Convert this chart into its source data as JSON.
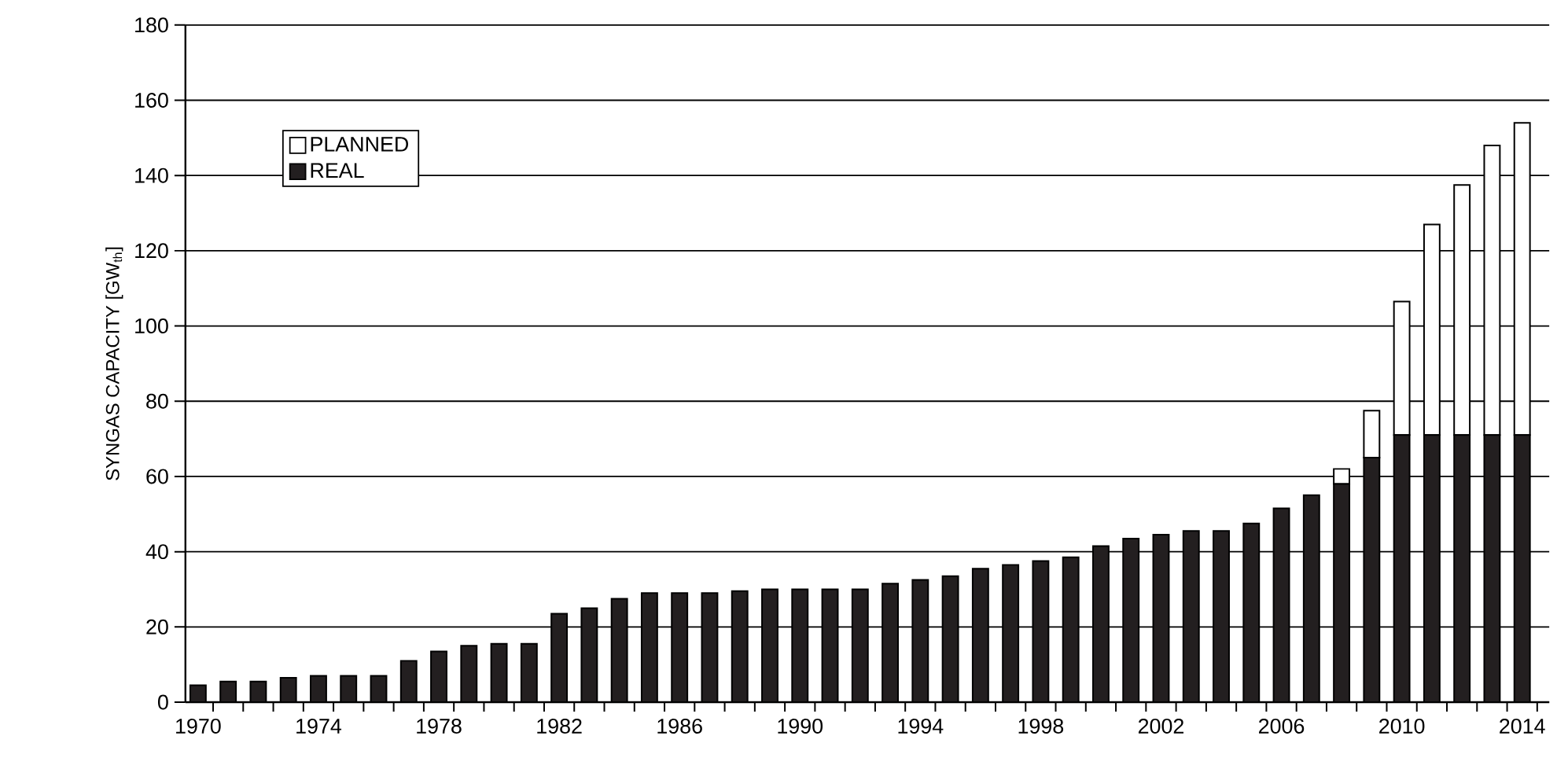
{
  "chart_data": {
    "type": "bar",
    "stacked": true,
    "ylabel": "SYNGAS CAPACITY [GW$_{th}$]",
    "categories": [
      "1970",
      null,
      null,
      null,
      "1974",
      null,
      null,
      null,
      "1978",
      null,
      null,
      null,
      "1982",
      null,
      null,
      null,
      "1986",
      null,
      null,
      null,
      "1990",
      null,
      null,
      null,
      "1994",
      null,
      null,
      null,
      "1998",
      null,
      null,
      null,
      "2002",
      null,
      null,
      null,
      "2006",
      null,
      null,
      null,
      "2010",
      null,
      null,
      null,
      "2014"
    ],
    "series": [
      {
        "name": "REAL",
        "color": "#231f20",
        "values": [
          4.5,
          5.5,
          5.5,
          6.5,
          7,
          7,
          7,
          11,
          13.5,
          15,
          15.5,
          15.5,
          23.5,
          25,
          27.5,
          29,
          29,
          29,
          29.5,
          30,
          30,
          30,
          30,
          31.5,
          32.5,
          33.5,
          35.5,
          36.5,
          37.5,
          38.5,
          41.5,
          43.5,
          44.5,
          45.5,
          45.5,
          47.5,
          51.5,
          55,
          58,
          65,
          71,
          71,
          71,
          71,
          71
        ]
      },
      {
        "name": "PLANNED",
        "color": "#ffffff",
        "values": [
          null,
          null,
          null,
          null,
          null,
          null,
          null,
          null,
          null,
          null,
          null,
          null,
          null,
          null,
          null,
          null,
          null,
          null,
          null,
          null,
          null,
          null,
          null,
          null,
          null,
          null,
          null,
          null,
          null,
          null,
          null,
          null,
          null,
          null,
          null,
          null,
          null,
          null,
          4,
          12.5,
          35.5,
          56,
          66.5,
          77,
          83
        ]
      }
    ],
    "ylim": [
      0,
      180
    ],
    "yticks": [
      0,
      20,
      40,
      60,
      80,
      100,
      120,
      140,
      160,
      180
    ],
    "grid": "y",
    "legend": "top left"
  }
}
